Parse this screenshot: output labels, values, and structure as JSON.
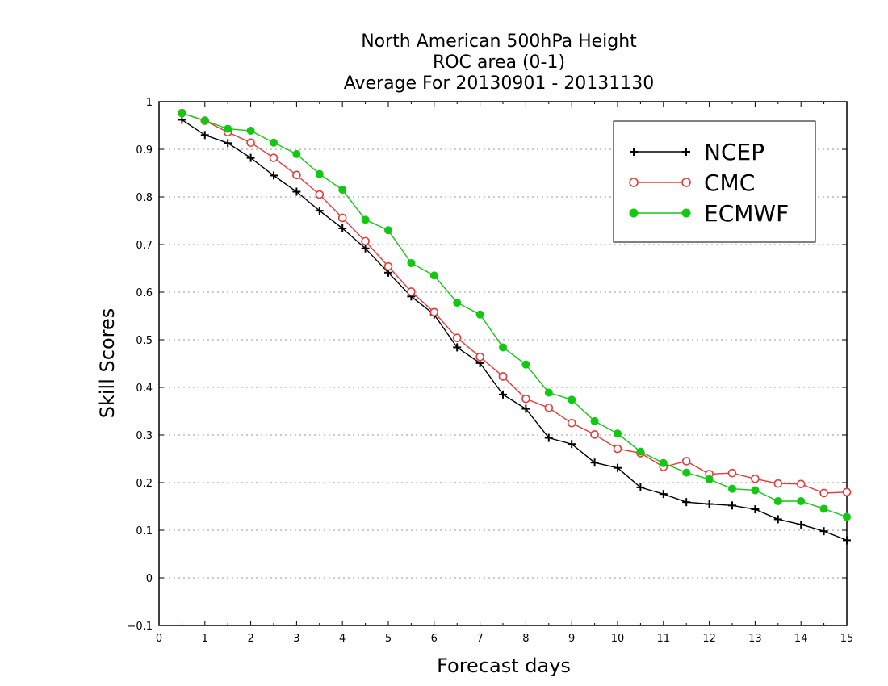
{
  "chart_data": {
    "type": "line",
    "title_lines": [
      "North American 500hPa Height",
      "ROC area (0-1)",
      "Average For 20130901 - 20131130"
    ],
    "xlabel": "Forecast days",
    "ylabel": "Skill Scores",
    "xlim": [
      0,
      15
    ],
    "ylim": [
      -0.1,
      1
    ],
    "x_ticks": [
      "0",
      "1",
      "2",
      "3",
      "4",
      "5",
      "6",
      "7",
      "8",
      "9",
      "10",
      "11",
      "12",
      "13",
      "14",
      "15"
    ],
    "y_ticks": [
      "−0.1",
      "0",
      "0.1",
      "0.2",
      "0.3",
      "0.4",
      "0.5",
      "0.6",
      "0.7",
      "0.8",
      "0.9",
      "1"
    ],
    "grid": "horizontal dotted",
    "legend_position": "top-right",
    "x": [
      0.5,
      1,
      1.5,
      2,
      2.5,
      3,
      3.5,
      4,
      4.5,
      5,
      5.5,
      6,
      6.5,
      7,
      7.5,
      8,
      8.5,
      9,
      9.5,
      10,
      10.5,
      11,
      11.5,
      12,
      12.5,
      13,
      13.5,
      14,
      14.5,
      15
    ],
    "series": [
      {
        "name": "NCEP",
        "color": "#000000",
        "marker": "plus",
        "values": [
          0.962,
          0.93,
          0.913,
          0.882,
          0.845,
          0.811,
          0.771,
          0.734,
          0.692,
          0.641,
          0.591,
          0.553,
          0.484,
          0.451,
          0.385,
          0.355,
          0.294,
          0.281,
          0.242,
          0.231,
          0.19,
          0.176,
          0.159,
          0.155,
          0.152,
          0.144,
          0.123,
          0.112,
          0.098,
          0.079
        ]
      },
      {
        "name": "CMC",
        "color": "#e8383a",
        "marker": "open-circle",
        "values": [
          0.976,
          0.96,
          0.936,
          0.914,
          0.882,
          0.846,
          0.805,
          0.756,
          0.707,
          0.654,
          0.601,
          0.558,
          0.504,
          0.464,
          0.423,
          0.376,
          0.357,
          0.325,
          0.301,
          0.271,
          0.262,
          0.233,
          0.245,
          0.218,
          0.22,
          0.208,
          0.198,
          0.197,
          0.178,
          0.18
        ]
      },
      {
        "name": "ECMWF",
        "color": "#12c812",
        "marker": "filled-circle",
        "values": [
          0.976,
          0.96,
          0.943,
          0.939,
          0.914,
          0.89,
          0.848,
          0.815,
          0.752,
          0.73,
          0.661,
          0.635,
          0.578,
          0.553,
          0.484,
          0.448,
          0.389,
          0.374,
          0.329,
          0.303,
          0.265,
          0.241,
          0.221,
          0.207,
          0.187,
          0.184,
          0.161,
          0.161,
          0.145,
          0.128
        ]
      }
    ]
  }
}
